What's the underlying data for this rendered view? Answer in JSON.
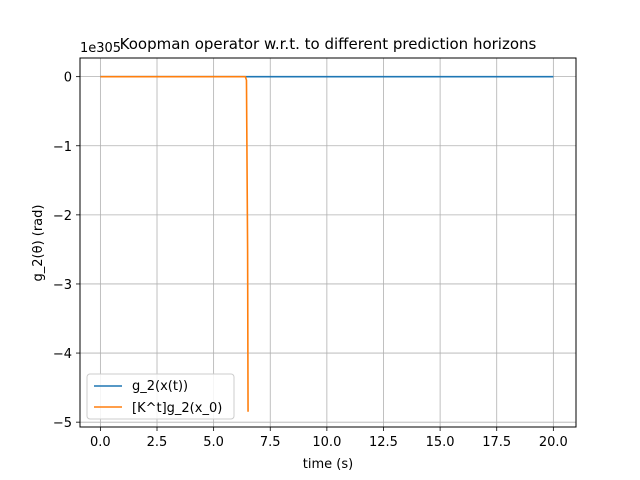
{
  "chart_data": {
    "type": "line",
    "title": "Koopman operator w.r.t. to different prediction horizons",
    "xlabel": "time (s)",
    "ylabel": "g_2(θ) (rad)",
    "offset_label": "1e305",
    "xlim": [
      -0.9,
      21.0
    ],
    "ylim": [
      -5.07,
      0.27
    ],
    "x_ticks": [
      0.0,
      2.5,
      5.0,
      7.5,
      10.0,
      12.5,
      15.0,
      17.5,
      20.0
    ],
    "x_tick_labels": [
      "0.0",
      "2.5",
      "5.0",
      "7.5",
      "10.0",
      "12.5",
      "15.0",
      "17.5",
      "20.0"
    ],
    "y_ticks": [
      0,
      -1,
      -2,
      -3,
      -4,
      -5
    ],
    "y_tick_labels": [
      "0",
      "−1",
      "−2",
      "−3",
      "−4",
      "−5"
    ],
    "grid": true,
    "legend_position": "lower-left",
    "series": [
      {
        "name": "g_2(x(t))",
        "color": "#1f77b4",
        "x": [
          0,
          20
        ],
        "y": [
          0,
          0
        ]
      },
      {
        "name": "[K^t]g_2(x_0)",
        "color": "#ff7f0e",
        "x": [
          0,
          6.4,
          6.45,
          6.5,
          6.52
        ],
        "y": [
          0,
          0,
          -0.05,
          -2.5,
          -4.85
        ]
      }
    ]
  }
}
